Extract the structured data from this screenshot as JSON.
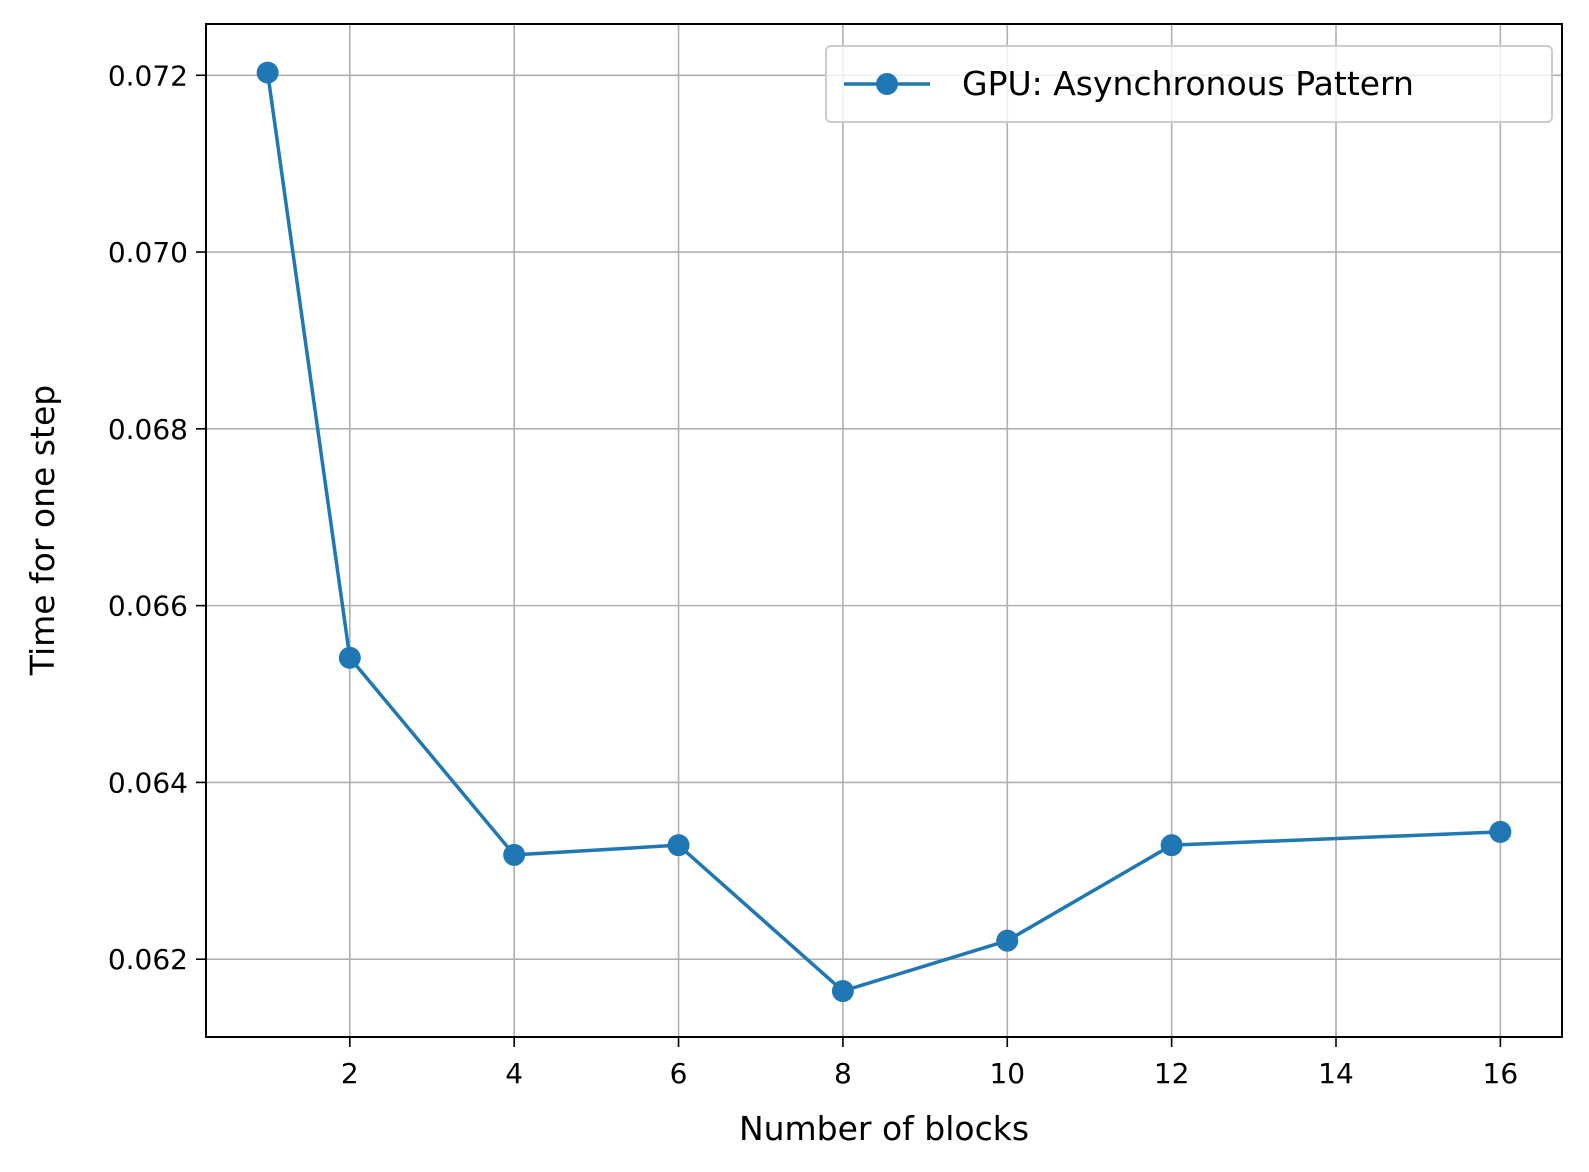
{
  "chart_data": {
    "type": "line",
    "title": "",
    "xlabel": "Number of blocks",
    "ylabel": "Time for one step",
    "xlim": [
      0.25,
      16.75
    ],
    "ylim": [
      0.06112,
      0.07258
    ],
    "xticks": [
      2,
      4,
      6,
      8,
      10,
      12,
      14,
      16
    ],
    "yticks": [
      0.062,
      0.064,
      0.066,
      0.068,
      0.07,
      0.072
    ],
    "ytick_labels": [
      "0.062",
      "0.064",
      "0.066",
      "0.068",
      "0.070",
      "0.072"
    ],
    "grid": true,
    "legend_position": "top-right",
    "series": [
      {
        "name": "GPU: Asynchronous Pattern",
        "color": "#1f77b4",
        "marker": "circle",
        "x": [
          1,
          2,
          4,
          6,
          8,
          10,
          12,
          16
        ],
        "y": [
          0.07203,
          0.06541,
          0.06318,
          0.06329,
          0.06164,
          0.06221,
          0.06329,
          0.06344
        ]
      }
    ]
  }
}
